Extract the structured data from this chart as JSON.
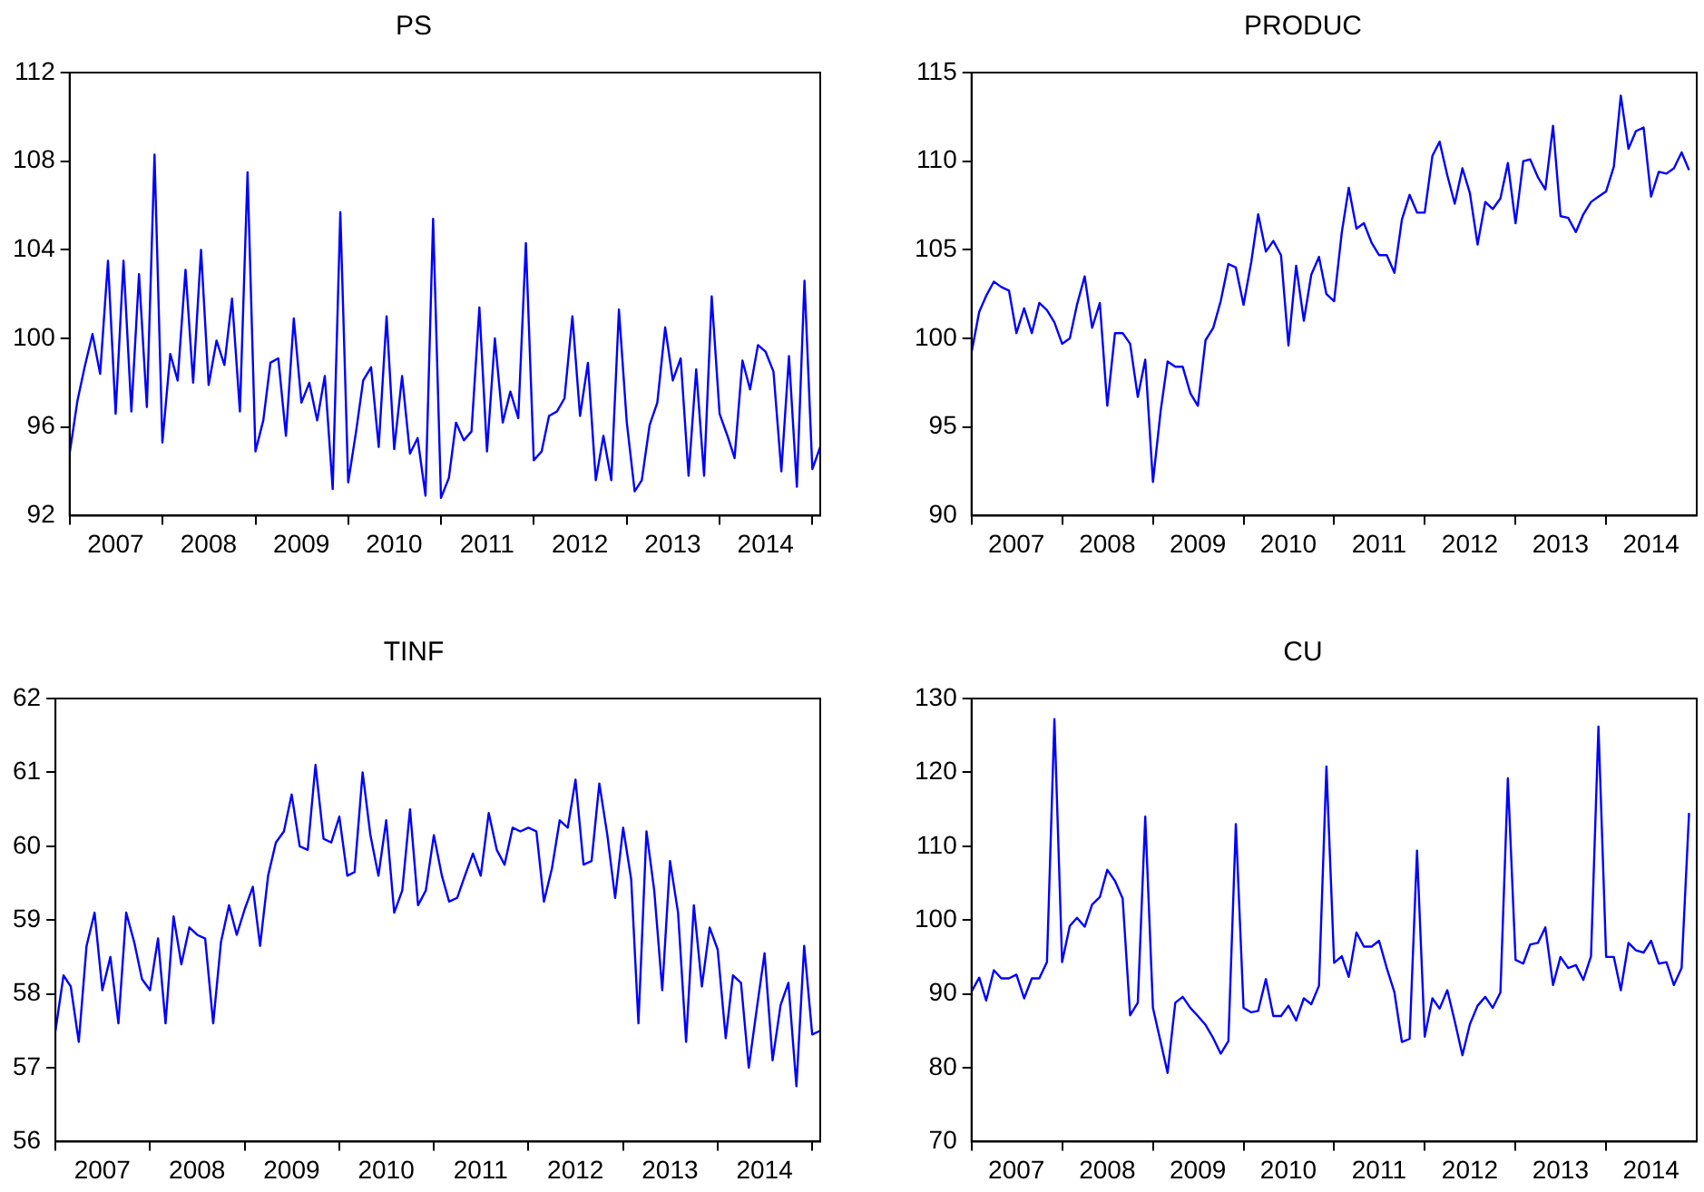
{
  "chart_data": [
    {
      "type": "line",
      "title": "PS",
      "color": "#0000ff",
      "marker": "none",
      "line_style": "solid",
      "x": [
        "2007-01",
        "2007-02",
        "2007-03",
        "2007-04",
        "2007-05",
        "2007-06",
        "2007-07",
        "2007-08",
        "2007-09",
        "2007-10",
        "2007-11",
        "2007-12",
        "2008-01",
        "2008-02",
        "2008-03",
        "2008-04",
        "2008-05",
        "2008-06",
        "2008-07",
        "2008-08",
        "2008-09",
        "2008-10",
        "2008-11",
        "2008-12",
        "2009-01",
        "2009-02",
        "2009-03",
        "2009-04",
        "2009-05",
        "2009-06",
        "2009-07",
        "2009-08",
        "2009-09",
        "2009-10",
        "2009-11",
        "2009-12",
        "2010-01",
        "2010-02",
        "2010-03",
        "2010-04",
        "2010-05",
        "2010-06",
        "2010-07",
        "2010-08",
        "2010-09",
        "2010-10",
        "2010-11",
        "2010-12",
        "2011-01",
        "2011-02",
        "2011-03",
        "2011-04",
        "2011-05",
        "2011-06",
        "2011-07",
        "2011-08",
        "2011-09",
        "2011-10",
        "2011-11",
        "2011-12",
        "2012-01",
        "2012-02",
        "2012-03",
        "2012-04",
        "2012-05",
        "2012-06",
        "2012-07",
        "2012-08",
        "2012-09",
        "2012-10",
        "2012-11",
        "2012-12",
        "2013-01",
        "2013-02",
        "2013-03",
        "2013-04",
        "2013-05",
        "2013-06",
        "2013-07",
        "2013-08",
        "2013-09",
        "2013-10",
        "2013-11",
        "2013-12",
        "2014-01",
        "2014-02",
        "2014-03",
        "2014-04",
        "2014-05",
        "2014-06",
        "2014-07",
        "2014-08",
        "2014-09",
        "2014-10",
        "2014-11",
        "2014-12",
        "2015-01",
        "2015-02"
      ],
      "values": [
        94.8,
        97.2,
        98.7,
        100.2,
        98.4,
        103.5,
        96.6,
        103.5,
        96.7,
        102.9,
        96.9,
        108.3,
        95.3,
        99.3,
        98.1,
        103.1,
        98.0,
        104.0,
        97.9,
        99.9,
        98.8,
        101.8,
        96.7,
        107.5,
        94.9,
        96.3,
        98.9,
        99.1,
        95.6,
        100.9,
        97.1,
        98.0,
        96.3,
        98.3,
        93.2,
        105.7,
        93.5,
        95.8,
        98.1,
        98.7,
        95.1,
        101.0,
        95.0,
        98.3,
        94.8,
        95.5,
        92.9,
        105.4,
        92.8,
        93.7,
        96.2,
        95.4,
        95.8,
        101.4,
        94.9,
        100.0,
        96.2,
        97.6,
        96.4,
        104.3,
        94.5,
        94.9,
        96.5,
        96.7,
        97.3,
        101.0,
        96.5,
        98.9,
        93.6,
        95.6,
        93.6,
        101.3,
        96.2,
        93.1,
        93.6,
        96.1,
        97.1,
        100.5,
        98.1,
        99.1,
        93.8,
        98.6,
        93.8,
        101.9,
        96.6,
        95.6,
        94.6,
        99.0,
        97.7,
        99.7,
        99.4,
        98.5,
        94.0,
        99.2,
        93.3,
        102.6,
        94.1,
        95.1
      ],
      "xlim": [
        "2007-01",
        "2015-02"
      ],
      "xticks": [
        {
          "value": "2007-01",
          "label": null
        },
        {
          "value": "2007-07",
          "label": "2007"
        },
        {
          "value": "2008-01",
          "label": null
        },
        {
          "value": "2008-07",
          "label": "2008"
        },
        {
          "value": "2009-01",
          "label": null
        },
        {
          "value": "2009-07",
          "label": "2009"
        },
        {
          "value": "2010-01",
          "label": null
        },
        {
          "value": "2010-07",
          "label": "2010"
        },
        {
          "value": "2011-01",
          "label": null
        },
        {
          "value": "2011-07",
          "label": "2011"
        },
        {
          "value": "2012-01",
          "label": null
        },
        {
          "value": "2012-07",
          "label": "2012"
        },
        {
          "value": "2013-01",
          "label": null
        },
        {
          "value": "2013-07",
          "label": "2013"
        },
        {
          "value": "2014-01",
          "label": null
        },
        {
          "value": "2014-07",
          "label": "2014"
        },
        {
          "value": "2015-01",
          "label": null
        }
      ],
      "ylim": [
        92,
        112
      ],
      "yticks": [
        92,
        96,
        100,
        104,
        108,
        112
      ]
    },
    {
      "type": "line",
      "title": "PRODUC",
      "color": "#0000ff",
      "marker": "none",
      "line_style": "solid",
      "x": [
        "2007-01",
        "2007-02",
        "2007-03",
        "2007-04",
        "2007-05",
        "2007-06",
        "2007-07",
        "2007-08",
        "2007-09",
        "2007-10",
        "2007-11",
        "2007-12",
        "2008-01",
        "2008-02",
        "2008-03",
        "2008-04",
        "2008-05",
        "2008-06",
        "2008-07",
        "2008-08",
        "2008-09",
        "2008-10",
        "2008-11",
        "2008-12",
        "2009-01",
        "2009-02",
        "2009-03",
        "2009-04",
        "2009-05",
        "2009-06",
        "2009-07",
        "2009-08",
        "2009-09",
        "2009-10",
        "2009-11",
        "2009-12",
        "2010-01",
        "2010-02",
        "2010-03",
        "2010-04",
        "2010-05",
        "2010-06",
        "2010-07",
        "2010-08",
        "2010-09",
        "2010-10",
        "2010-11",
        "2010-12",
        "2011-01",
        "2011-02",
        "2011-03",
        "2011-04",
        "2011-05",
        "2011-06",
        "2011-07",
        "2011-08",
        "2011-09",
        "2011-10",
        "2011-11",
        "2011-12",
        "2012-01",
        "2012-02",
        "2012-03",
        "2012-04",
        "2012-05",
        "2012-06",
        "2012-07",
        "2012-08",
        "2012-09",
        "2012-10",
        "2012-11",
        "2012-12",
        "2013-01",
        "2013-02",
        "2013-03",
        "2013-04",
        "2013-05",
        "2013-06",
        "2013-07",
        "2013-08",
        "2013-09",
        "2013-10",
        "2013-11",
        "2013-12",
        "2014-01",
        "2014-02",
        "2014-03",
        "2014-04",
        "2014-05",
        "2014-06",
        "2014-07",
        "2014-08",
        "2014-09",
        "2014-10",
        "2014-11",
        "2014-12"
      ],
      "values": [
        99.2,
        101.5,
        102.4,
        103.2,
        102.9,
        102.7,
        100.3,
        101.7,
        100.3,
        102.0,
        101.6,
        100.9,
        99.7,
        100.0,
        101.9,
        103.5,
        100.6,
        102.0,
        96.2,
        100.3,
        100.3,
        99.7,
        96.7,
        98.8,
        91.9,
        95.9,
        98.7,
        98.4,
        98.4,
        96.9,
        96.2,
        99.9,
        100.6,
        102.1,
        104.2,
        104.0,
        101.9,
        104.3,
        107.0,
        104.9,
        105.5,
        104.7,
        99.6,
        104.1,
        101.0,
        103.6,
        104.6,
        102.5,
        102.1,
        106.0,
        108.5,
        106.2,
        106.5,
        105.4,
        104.7,
        104.7,
        103.7,
        106.7,
        108.1,
        107.1,
        107.1,
        110.3,
        111.1,
        109.2,
        107.6,
        109.6,
        108.2,
        105.3,
        107.7,
        107.3,
        107.9,
        109.9,
        106.5,
        110.0,
        110.1,
        109.1,
        108.4,
        112.0,
        106.9,
        106.8,
        106.0,
        107.0,
        107.7,
        108.0,
        108.3,
        109.7,
        113.7,
        110.7,
        111.7,
        111.9,
        108.0,
        109.4,
        109.3,
        109.6,
        110.5,
        109.5
      ],
      "xlim": [
        "2007-01",
        "2015-01"
      ],
      "xticks": [
        {
          "value": "2007-01",
          "label": null
        },
        {
          "value": "2007-07",
          "label": "2007"
        },
        {
          "value": "2008-01",
          "label": null
        },
        {
          "value": "2008-07",
          "label": "2008"
        },
        {
          "value": "2009-01",
          "label": null
        },
        {
          "value": "2009-07",
          "label": "2009"
        },
        {
          "value": "2010-01",
          "label": null
        },
        {
          "value": "2010-07",
          "label": "2010"
        },
        {
          "value": "2011-01",
          "label": null
        },
        {
          "value": "2011-07",
          "label": "2011"
        },
        {
          "value": "2012-01",
          "label": null
        },
        {
          "value": "2012-07",
          "label": "2012"
        },
        {
          "value": "2013-01",
          "label": null
        },
        {
          "value": "2013-07",
          "label": "2013"
        },
        {
          "value": "2014-01",
          "label": null
        },
        {
          "value": "2014-07",
          "label": "2014"
        }
      ],
      "ylim": [
        90,
        115
      ],
      "yticks": [
        90,
        95,
        100,
        105,
        110,
        115
      ]
    },
    {
      "type": "line",
      "title": "TINF",
      "color": "#0000ff",
      "marker": "none",
      "line_style": "solid",
      "x": [
        "2007-01",
        "2007-02",
        "2007-03",
        "2007-04",
        "2007-05",
        "2007-06",
        "2007-07",
        "2007-08",
        "2007-09",
        "2007-10",
        "2007-11",
        "2007-12",
        "2008-01",
        "2008-02",
        "2008-03",
        "2008-04",
        "2008-05",
        "2008-06",
        "2008-07",
        "2008-08",
        "2008-09",
        "2008-10",
        "2008-11",
        "2008-12",
        "2009-01",
        "2009-02",
        "2009-03",
        "2009-04",
        "2009-05",
        "2009-06",
        "2009-07",
        "2009-08",
        "2009-09",
        "2009-10",
        "2009-11",
        "2009-12",
        "2010-01",
        "2010-02",
        "2010-03",
        "2010-04",
        "2010-05",
        "2010-06",
        "2010-07",
        "2010-08",
        "2010-09",
        "2010-10",
        "2010-11",
        "2010-12",
        "2011-01",
        "2011-02",
        "2011-03",
        "2011-04",
        "2011-05",
        "2011-06",
        "2011-07",
        "2011-08",
        "2011-09",
        "2011-10",
        "2011-11",
        "2011-12",
        "2012-01",
        "2012-02",
        "2012-03",
        "2012-04",
        "2012-05",
        "2012-06",
        "2012-07",
        "2012-08",
        "2012-09",
        "2012-10",
        "2012-11",
        "2012-12",
        "2013-01",
        "2013-02",
        "2013-03",
        "2013-04",
        "2013-05",
        "2013-06",
        "2013-07",
        "2013-08",
        "2013-09",
        "2013-10",
        "2013-11",
        "2013-12",
        "2014-01",
        "2014-02",
        "2014-03",
        "2014-04",
        "2014-05",
        "2014-06",
        "2014-07",
        "2014-08",
        "2014-09",
        "2014-10",
        "2014-11",
        "2014-12",
        "2015-01",
        "2015-02"
      ],
      "values": [
        57.5,
        58.25,
        58.1,
        57.35,
        58.65,
        59.1,
        58.05,
        58.5,
        57.6,
        59.1,
        58.7,
        58.2,
        58.05,
        58.75,
        57.6,
        59.05,
        58.4,
        58.9,
        58.8,
        58.75,
        57.6,
        58.7,
        59.2,
        58.8,
        59.15,
        59.45,
        58.65,
        59.6,
        60.05,
        60.2,
        60.7,
        60.0,
        59.95,
        61.1,
        60.1,
        60.05,
        60.4,
        59.6,
        59.65,
        61.0,
        60.15,
        59.6,
        60.35,
        59.1,
        59.4,
        60.5,
        59.2,
        59.4,
        60.15,
        59.6,
        59.25,
        59.3,
        59.6,
        59.9,
        59.6,
        60.45,
        59.95,
        59.75,
        60.25,
        60.2,
        60.25,
        60.2,
        59.25,
        59.7,
        60.35,
        60.25,
        60.9,
        59.75,
        59.8,
        60.85,
        60.15,
        59.3,
        60.25,
        59.55,
        57.6,
        60.2,
        59.4,
        58.05,
        59.8,
        59.1,
        57.35,
        59.2,
        58.1,
        58.9,
        58.6,
        57.4,
        58.25,
        58.15,
        57.0,
        57.8,
        58.55,
        57.1,
        57.85,
        58.15,
        56.75,
        58.65,
        57.45,
        57.5
      ],
      "xlim": [
        "2007-01",
        "2015-02"
      ],
      "xticks": [
        {
          "value": "2007-01",
          "label": null
        },
        {
          "value": "2007-07",
          "label": "2007"
        },
        {
          "value": "2008-01",
          "label": null
        },
        {
          "value": "2008-07",
          "label": "2008"
        },
        {
          "value": "2009-01",
          "label": null
        },
        {
          "value": "2009-07",
          "label": "2009"
        },
        {
          "value": "2010-01",
          "label": null
        },
        {
          "value": "2010-07",
          "label": "2010"
        },
        {
          "value": "2011-01",
          "label": null
        },
        {
          "value": "2011-07",
          "label": "2011"
        },
        {
          "value": "2012-01",
          "label": null
        },
        {
          "value": "2012-07",
          "label": "2012"
        },
        {
          "value": "2013-01",
          "label": null
        },
        {
          "value": "2013-07",
          "label": "2013"
        },
        {
          "value": "2014-01",
          "label": null
        },
        {
          "value": "2014-07",
          "label": "2014"
        },
        {
          "value": "2015-01",
          "label": null
        }
      ],
      "ylim": [
        56,
        62
      ],
      "yticks": [
        56,
        57,
        58,
        59,
        60,
        61,
        62
      ]
    },
    {
      "type": "line",
      "title": "CU",
      "color": "#0000ff",
      "marker": "none",
      "line_style": "solid",
      "x": [
        "2007-01",
        "2007-02",
        "2007-03",
        "2007-04",
        "2007-05",
        "2007-06",
        "2007-07",
        "2007-08",
        "2007-09",
        "2007-10",
        "2007-11",
        "2007-12",
        "2008-01",
        "2008-02",
        "2008-03",
        "2008-04",
        "2008-05",
        "2008-06",
        "2008-07",
        "2008-08",
        "2008-09",
        "2008-10",
        "2008-11",
        "2008-12",
        "2009-01",
        "2009-02",
        "2009-03",
        "2009-04",
        "2009-05",
        "2009-06",
        "2009-07",
        "2009-08",
        "2009-09",
        "2009-10",
        "2009-11",
        "2009-12",
        "2010-01",
        "2010-02",
        "2010-03",
        "2010-04",
        "2010-05",
        "2010-06",
        "2010-07",
        "2010-08",
        "2010-09",
        "2010-10",
        "2010-11",
        "2010-12",
        "2011-01",
        "2011-02",
        "2011-03",
        "2011-04",
        "2011-05",
        "2011-06",
        "2011-07",
        "2011-08",
        "2011-09",
        "2011-10",
        "2011-11",
        "2011-12",
        "2012-01",
        "2012-02",
        "2012-03",
        "2012-04",
        "2012-05",
        "2012-06",
        "2012-07",
        "2012-08",
        "2012-09",
        "2012-10",
        "2012-11",
        "2012-12",
        "2013-01",
        "2013-02",
        "2013-03",
        "2013-04",
        "2013-05",
        "2013-06",
        "2013-07",
        "2013-08",
        "2013-09",
        "2013-10",
        "2013-11",
        "2013-12",
        "2014-01",
        "2014-02",
        "2014-03",
        "2014-04",
        "2014-05",
        "2014-06",
        "2014-07",
        "2014-08",
        "2014-09",
        "2014-10",
        "2014-11",
        "2014-12"
      ],
      "values": [
        90.3,
        92.2,
        89.1,
        93.2,
        92.1,
        92.1,
        92.6,
        89.4,
        92.1,
        92.1,
        94.3,
        127.2,
        94.3,
        99.2,
        100.3,
        99.1,
        102.1,
        103.1,
        106.8,
        105.3,
        102.9,
        87.1,
        88.8,
        114.0,
        88.1,
        83.5,
        79.3,
        88.8,
        89.6,
        88.1,
        87.0,
        85.8,
        84.0,
        81.9,
        83.6,
        113.0,
        88.1,
        87.5,
        87.7,
        92.0,
        87.0,
        87.0,
        88.4,
        86.4,
        89.4,
        88.6,
        91.1,
        120.8,
        94.2,
        95.1,
        92.3,
        98.3,
        96.4,
        96.4,
        97.2,
        93.5,
        90.2,
        83.5,
        83.9,
        109.4,
        84.2,
        89.4,
        88.0,
        90.5,
        86.3,
        81.7,
        85.9,
        88.4,
        89.6,
        88.1,
        90.2,
        119.2,
        94.6,
        94.1,
        96.7,
        96.9,
        99.0,
        91.2,
        95.0,
        93.5,
        93.9,
        91.9,
        95.1,
        126.2,
        95.0,
        95.0,
        90.5,
        96.9,
        95.9,
        95.6,
        97.2,
        94.1,
        94.3,
        91.2,
        93.5,
        114.5
      ],
      "xlim": [
        "2007-01",
        "2015-01"
      ],
      "xticks": [
        {
          "value": "2007-01",
          "label": null
        },
        {
          "value": "2007-07",
          "label": "2007"
        },
        {
          "value": "2008-01",
          "label": null
        },
        {
          "value": "2008-07",
          "label": "2008"
        },
        {
          "value": "2009-01",
          "label": null
        },
        {
          "value": "2009-07",
          "label": "2009"
        },
        {
          "value": "2010-01",
          "label": null
        },
        {
          "value": "2010-07",
          "label": "2010"
        },
        {
          "value": "2011-01",
          "label": null
        },
        {
          "value": "2011-07",
          "label": "2011"
        },
        {
          "value": "2012-01",
          "label": null
        },
        {
          "value": "2012-07",
          "label": "2012"
        },
        {
          "value": "2013-01",
          "label": null
        },
        {
          "value": "2013-07",
          "label": "2013"
        },
        {
          "value": "2014-01",
          "label": null
        },
        {
          "value": "2014-07",
          "label": "2014"
        }
      ],
      "ylim": [
        70,
        130
      ],
      "yticks": [
        70,
        80,
        90,
        100,
        110,
        120,
        130
      ]
    }
  ]
}
